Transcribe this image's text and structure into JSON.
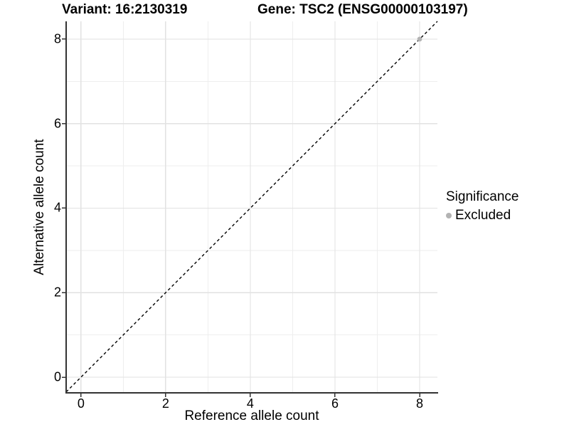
{
  "titles": {
    "variant": "Variant: 16:2130319",
    "gene": "Gene: TSC2 (ENSG00000103197)"
  },
  "legend": {
    "title": "Significance",
    "entries": [
      {
        "label": "Excluded",
        "color": "#b3b3b3"
      }
    ]
  },
  "colors": {
    "background": "#ffffff",
    "grid_major": "#e2e2e2",
    "grid_minor": "#eeeeee",
    "axis_line": "#333333",
    "tick_mark": "#333333",
    "dashed_line": "#000000",
    "point": "#b3b3b3",
    "text": "#000000"
  },
  "chart_data": {
    "type": "scatter",
    "title": "Variant: 16:2130319   Gene: TSC2 (ENSG00000103197)",
    "xlabel": "Reference allele count",
    "ylabel": "Alternative allele count",
    "xlim": [
      -0.35,
      8.42
    ],
    "ylim": [
      -0.37,
      8.42
    ],
    "xticks": [
      0,
      2,
      4,
      6,
      8
    ],
    "yticks": [
      0,
      2,
      4,
      6,
      8
    ],
    "minor_xticks": [
      1,
      3,
      5,
      7
    ],
    "minor_yticks": [
      1,
      3,
      5,
      7
    ],
    "grid": true,
    "legend_position": "right",
    "legend_title": "Significance",
    "series": [
      {
        "name": "Excluded",
        "color": "#b3b3b3",
        "points": [
          {
            "x": 8,
            "y": 8
          }
        ]
      }
    ],
    "reference_line": {
      "type": "identity",
      "equation": "y = x",
      "style": "dashed",
      "color": "#000000"
    }
  }
}
